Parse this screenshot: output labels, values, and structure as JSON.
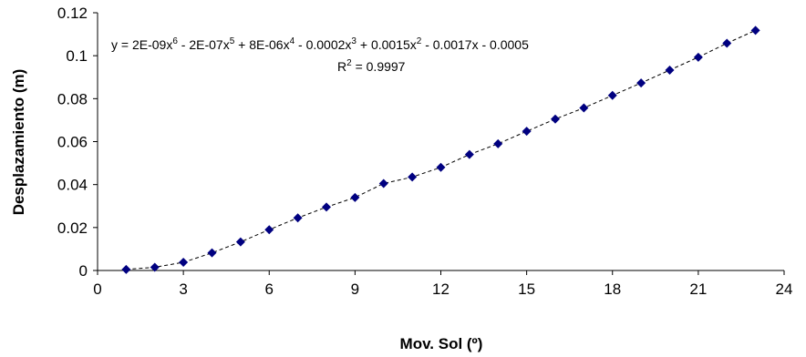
{
  "chart_data": {
    "type": "scatter",
    "xlabel": "Mov. Sol (º)",
    "ylabel": "Desplazamiento (m)",
    "xlim": [
      0,
      24
    ],
    "ylim": [
      0,
      0.12
    ],
    "xticks": [
      "0",
      "3",
      "6",
      "9",
      "12",
      "15",
      "18",
      "21",
      "24"
    ],
    "yticks": [
      "0",
      "0.02",
      "0.04",
      "0.06",
      "0.08",
      "0.1",
      "0.12"
    ],
    "grid": false,
    "legend": "none",
    "marker_color": "#000080",
    "trendline": {
      "type": "polynomial",
      "order": 6,
      "style": "dashed",
      "coefficients": [
        -0.0005,
        -0.0017,
        0.0015,
        -0.0002,
        8e-06,
        -2e-07,
        2e-09
      ],
      "equation": {
        "parts": [
          "y = 2E-09x",
          "6",
          " - 2E-07x",
          "5",
          " + 8E-06x",
          "4",
          " - 0.0002x",
          "3",
          " + 0.0015x",
          "2",
          " - 0.0017x - 0.0005"
        ]
      },
      "r2": {
        "label": "R",
        "sup": "2",
        "value": " = 0.9997"
      }
    },
    "x": [
      1,
      2,
      3,
      4,
      5,
      6,
      7,
      8,
      9,
      10,
      11,
      12,
      13,
      14,
      15,
      16,
      17,
      18,
      19,
      20,
      21,
      22,
      23
    ],
    "y": [
      0.0005,
      0.0015,
      0.0038,
      0.0082,
      0.0133,
      0.019,
      0.0245,
      0.0295,
      0.034,
      0.0405,
      0.0435,
      0.048,
      0.054,
      0.059,
      0.0648,
      0.0705,
      0.0757,
      0.0815,
      0.0873,
      0.0933,
      0.0993,
      0.1058,
      0.1118
    ]
  }
}
